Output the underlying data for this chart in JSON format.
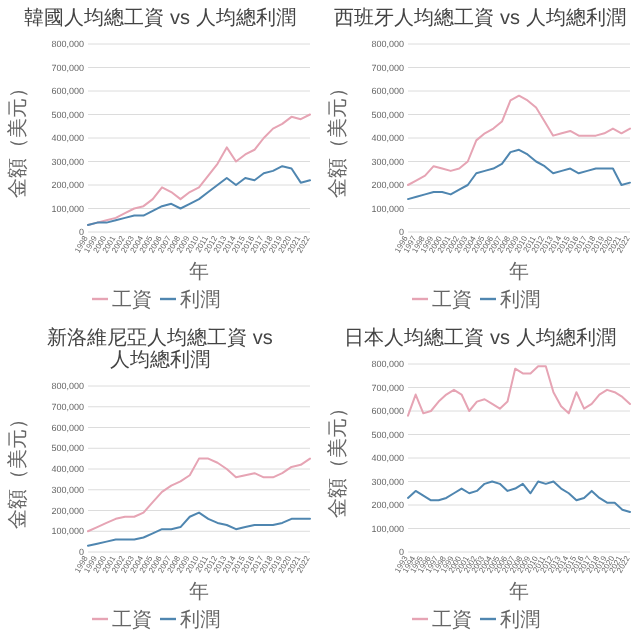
{
  "chart_data": [
    {
      "type": "line",
      "title": "韓國人均總工資 vs 人均總利潤",
      "xlabel": "年",
      "ylabel": "金額（美元）",
      "categories": [
        "1998",
        "1999",
        "2000",
        "2001",
        "2002",
        "2003",
        "2004",
        "2005",
        "2006",
        "2007",
        "2008",
        "2009",
        "2010",
        "2011",
        "2012",
        "2013",
        "2014",
        "2015",
        "2016",
        "2017",
        "2018",
        "2019",
        "2020",
        "2021",
        "2022"
      ],
      "series": [
        {
          "name": "工資",
          "color": "#e6a4b4",
          "values": [
            30000,
            40000,
            50000,
            60000,
            80000,
            100000,
            110000,
            140000,
            190000,
            170000,
            140000,
            170000,
            190000,
            240000,
            290000,
            360000,
            300000,
            330000,
            350000,
            400000,
            440000,
            460000,
            490000,
            480000,
            500000
          ]
        },
        {
          "name": "利潤",
          "color": "#4f86b0",
          "values": [
            30000,
            40000,
            40000,
            50000,
            60000,
            70000,
            70000,
            90000,
            110000,
            120000,
            100000,
            120000,
            140000,
            170000,
            200000,
            230000,
            200000,
            230000,
            220000,
            250000,
            260000,
            280000,
            270000,
            210000,
            220000
          ]
        }
      ],
      "ylim": [
        0,
        800000
      ],
      "yticks": [
        {
          "value": 0,
          "label": "0"
        },
        {
          "value": 100000,
          "label": "100,000"
        },
        {
          "value": 200000,
          "label": "200,000"
        },
        {
          "value": 300000,
          "label": "300,000"
        },
        {
          "value": 400000,
          "label": "400,000"
        },
        {
          "value": 500000,
          "label": "500,000"
        },
        {
          "value": 600000,
          "label": "600,000"
        },
        {
          "value": 700000,
          "label": "700,000"
        },
        {
          "value": 800000,
          "label": "800,000"
        }
      ],
      "grid": "y",
      "legend": "bottom"
    },
    {
      "type": "line",
      "title": "西班牙人均總工資 vs 人均總利潤",
      "xlabel": "年",
      "ylabel": "金額（美元）",
      "categories": [
        "1996",
        "1997",
        "1998",
        "1999",
        "2000",
        "2001",
        "2002",
        "2003",
        "2004",
        "2005",
        "2006",
        "2007",
        "2008",
        "2009",
        "2010",
        "2011",
        "2012",
        "2013",
        "2014",
        "2015",
        "2016",
        "2017",
        "2018",
        "2019",
        "2020",
        "2021",
        "2022"
      ],
      "series": [
        {
          "name": "工資",
          "color": "#e6a4b4",
          "values": [
            200000,
            220000,
            240000,
            280000,
            270000,
            260000,
            270000,
            300000,
            390000,
            420000,
            440000,
            470000,
            560000,
            580000,
            560000,
            530000,
            470000,
            410000,
            420000,
            430000,
            410000,
            410000,
            410000,
            420000,
            440000,
            420000,
            440000
          ]
        },
        {
          "name": "利潤",
          "color": "#4f86b0",
          "values": [
            140000,
            150000,
            160000,
            170000,
            170000,
            160000,
            180000,
            200000,
            250000,
            260000,
            270000,
            290000,
            340000,
            350000,
            330000,
            300000,
            280000,
            250000,
            260000,
            270000,
            250000,
            260000,
            270000,
            270000,
            270000,
            200000,
            210000
          ]
        }
      ],
      "ylim": [
        0,
        800000
      ],
      "yticks": [
        {
          "value": 0,
          "label": "0"
        },
        {
          "value": 100000,
          "label": "100,000"
        },
        {
          "value": 200000,
          "label": "200,000"
        },
        {
          "value": 300000,
          "label": "300,000"
        },
        {
          "value": 400000,
          "label": "400,000"
        },
        {
          "value": 500000,
          "label": "500,000"
        },
        {
          "value": 600000,
          "label": "600,000"
        },
        {
          "value": 700000,
          "label": "700,000"
        },
        {
          "value": 800000,
          "label": "800,000"
        }
      ],
      "grid": "y",
      "legend": "bottom"
    },
    {
      "type": "line",
      "title": "新洛維尼亞人均總工資 vs 人均總利潤",
      "xlabel": "年",
      "ylabel": "金額（美元）",
      "categories": [
        "1998",
        "1999",
        "2000",
        "2001",
        "2002",
        "2003",
        "2004",
        "2005",
        "2006",
        "2007",
        "2008",
        "2009",
        "2010",
        "2011",
        "2012",
        "2013",
        "2014",
        "2015",
        "2016",
        "2017",
        "2018",
        "2019",
        "2020",
        "2021",
        "2022"
      ],
      "series": [
        {
          "name": "工資",
          "color": "#e6a4b4",
          "values": [
            100000,
            120000,
            140000,
            160000,
            170000,
            170000,
            190000,
            240000,
            290000,
            320000,
            340000,
            370000,
            450000,
            450000,
            430000,
            400000,
            360000,
            370000,
            380000,
            360000,
            360000,
            380000,
            410000,
            420000,
            450000
          ]
        },
        {
          "name": "利潤",
          "color": "#4f86b0",
          "values": [
            30000,
            40000,
            50000,
            60000,
            60000,
            60000,
            70000,
            90000,
            110000,
            110000,
            120000,
            170000,
            190000,
            160000,
            140000,
            130000,
            110000,
            120000,
            130000,
            130000,
            130000,
            140000,
            160000,
            160000,
            160000
          ]
        }
      ],
      "ylim": [
        0,
        800000
      ],
      "yticks": [
        {
          "value": 0,
          "label": "0"
        },
        {
          "value": 100000,
          "label": "100,000"
        },
        {
          "value": 200000,
          "label": "200,000"
        },
        {
          "value": 300000,
          "label": "300,000"
        },
        {
          "value": 400000,
          "label": "400,000"
        },
        {
          "value": 500000,
          "label": "500,000"
        },
        {
          "value": 600000,
          "label": "600,000"
        },
        {
          "value": 700000,
          "label": "700,000"
        },
        {
          "value": 800000,
          "label": "800,000"
        }
      ],
      "grid": "y",
      "legend": "bottom"
    },
    {
      "type": "line",
      "title": "日本人均總工資 vs 人均總利潤",
      "xlabel": "年",
      "ylabel": "金額（美元）",
      "categories": [
        "1993",
        "1994",
        "1995",
        "1996",
        "1997",
        "1998",
        "1999",
        "2000",
        "2001",
        "2002",
        "2003",
        "2004",
        "2005",
        "2006",
        "2007",
        "2008",
        "2009",
        "2010",
        "2011",
        "2012",
        "2013",
        "2014",
        "2015",
        "2016",
        "2017",
        "2018",
        "2019",
        "2020",
        "2021",
        "2022"
      ],
      "series": [
        {
          "name": "工資",
          "color": "#e6a4b4",
          "values": [
            580000,
            670000,
            590000,
            600000,
            640000,
            670000,
            690000,
            670000,
            600000,
            640000,
            650000,
            630000,
            610000,
            640000,
            780000,
            760000,
            760000,
            790000,
            790000,
            680000,
            620000,
            590000,
            680000,
            610000,
            630000,
            670000,
            690000,
            680000,
            660000,
            630000
          ]
        },
        {
          "name": "利潤",
          "color": "#4f86b0",
          "values": [
            230000,
            260000,
            240000,
            220000,
            220000,
            230000,
            250000,
            270000,
            250000,
            260000,
            290000,
            300000,
            290000,
            260000,
            270000,
            290000,
            250000,
            300000,
            290000,
            300000,
            270000,
            250000,
            220000,
            230000,
            260000,
            230000,
            210000,
            210000,
            180000,
            170000
          ]
        }
      ],
      "ylim": [
        0,
        800000
      ],
      "yticks": [
        {
          "value": 0,
          "label": "0"
        },
        {
          "value": 100000,
          "label": "100,000"
        },
        {
          "value": 200000,
          "label": "200,000"
        },
        {
          "value": 300000,
          "label": "300,000"
        },
        {
          "value": 400000,
          "label": "400,000"
        },
        {
          "value": 500000,
          "label": "500,000"
        },
        {
          "value": 600000,
          "label": "600,000"
        },
        {
          "value": 700000,
          "label": "700,000"
        },
        {
          "value": 800000,
          "label": "800,000"
        }
      ],
      "grid": "y",
      "legend": "bottom"
    }
  ]
}
